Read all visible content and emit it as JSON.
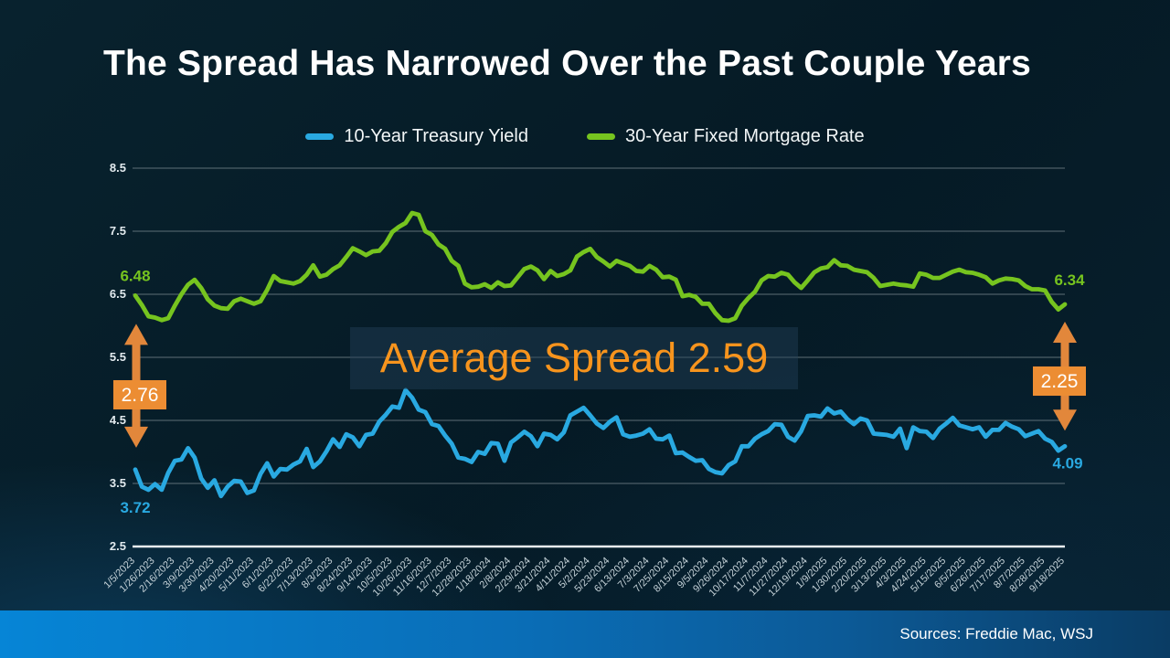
{
  "title": "The Spread Has Narrowed Over the Past Couple Years",
  "legend": [
    {
      "label": "10-Year Treasury Yield",
      "color": "#29a9e1"
    },
    {
      "label": "30-Year Fixed Mortgage Rate",
      "color": "#76c41f"
    }
  ],
  "annotations": {
    "mortgage_start": "6.48",
    "mortgage_end": "6.34",
    "treasury_start": "3.72",
    "treasury_end": "4.09",
    "left_spread": "2.76",
    "right_spread": "2.25",
    "average_spread": "Average Spread 2.59"
  },
  "footer": {
    "sources": "Sources: Freddie Mac, WSJ"
  },
  "colors": {
    "treasury_line": "#29a9e1",
    "mortgage_line": "#76c41f",
    "arrow_orange": "#e2873b",
    "box_orange": "#ec8d33",
    "avg_text_orange": "#f7941d",
    "gridline": "#8d9aa0",
    "axis_line": "#e9eff1",
    "y_tick_text": "#e2eaee",
    "x_tick_text": "#c5d2d8",
    "title_text": "#ffffff"
  },
  "chart_data": {
    "type": "line",
    "title": "The Spread Has Narrowed Over the Past Couple Years",
    "xlabel": "",
    "ylabel": "",
    "ylim": [
      2.5,
      8.5
    ],
    "yticks": [
      2.5,
      3.5,
      4.5,
      5.5,
      6.5,
      7.5,
      8.5
    ],
    "xtick_every": 3,
    "grid": true,
    "legend_position": "top",
    "x": [
      "1/5/2023",
      "1/12/2023",
      "1/19/2023",
      "1/26/2023",
      "2/2/2023",
      "2/9/2023",
      "2/16/2023",
      "2/23/2023",
      "3/2/2023",
      "3/9/2023",
      "3/16/2023",
      "3/23/2023",
      "3/30/2023",
      "4/6/2023",
      "4/13/2023",
      "4/20/2023",
      "4/27/2023",
      "5/4/2023",
      "5/11/2023",
      "5/18/2023",
      "5/25/2023",
      "6/1/2023",
      "6/8/2023",
      "6/15/2023",
      "6/22/2023",
      "6/29/2023",
      "7/6/2023",
      "7/13/2023",
      "7/20/2023",
      "7/27/2023",
      "8/3/2023",
      "8/10/2023",
      "8/17/2023",
      "8/24/2023",
      "8/31/2023",
      "9/7/2023",
      "9/14/2023",
      "9/21/2023",
      "9/28/2023",
      "10/5/2023",
      "10/12/2023",
      "10/19/2023",
      "10/26/2023",
      "11/2/2023",
      "11/9/2023",
      "11/16/2023",
      "11/22/2023",
      "11/30/2023",
      "12/7/2023",
      "12/14/2023",
      "12/21/2023",
      "12/28/2023",
      "1/4/2024",
      "1/11/2024",
      "1/18/2024",
      "1/25/2024",
      "2/1/2024",
      "2/8/2024",
      "2/15/2024",
      "2/22/2024",
      "2/29/2024",
      "3/7/2024",
      "3/14/2024",
      "3/21/2024",
      "3/28/2024",
      "4/4/2024",
      "4/11/2024",
      "4/18/2024",
      "4/25/2024",
      "5/2/2024",
      "5/9/2024",
      "5/16/2024",
      "5/23/2024",
      "5/30/2024",
      "6/6/2024",
      "6/13/2024",
      "6/20/2024",
      "6/27/2024",
      "7/3/2024",
      "7/11/2024",
      "7/18/2024",
      "7/25/2024",
      "8/1/2024",
      "8/8/2024",
      "8/15/2024",
      "8/22/2024",
      "8/29/2024",
      "9/5/2024",
      "9/12/2024",
      "9/19/2024",
      "9/26/2024",
      "10/3/2024",
      "10/10/2024",
      "10/17/2024",
      "10/24/2024",
      "10/31/2024",
      "11/7/2024",
      "11/14/2024",
      "11/21/2024",
      "11/27/2024",
      "12/5/2024",
      "12/12/2024",
      "12/19/2024",
      "12/26/2024",
      "1/2/2025",
      "1/9/2025",
      "1/16/2025",
      "1/23/2025",
      "1/30/2025",
      "2/6/2025",
      "2/13/2025",
      "2/20/2025",
      "2/27/2025",
      "3/6/2025",
      "3/13/2025",
      "3/20/2025",
      "3/27/2025",
      "4/3/2025",
      "4/10/2025",
      "4/17/2025",
      "4/24/2025",
      "5/1/2025",
      "5/8/2025",
      "5/15/2025",
      "5/22/2025",
      "5/29/2025",
      "6/5/2025",
      "6/12/2025",
      "6/18/2025",
      "6/26/2025",
      "7/3/2025",
      "7/10/2025",
      "7/17/2025",
      "7/24/2025",
      "7/31/2025",
      "8/7/2025",
      "8/14/2025",
      "8/21/2025",
      "8/28/2025",
      "9/4/2025",
      "9/11/2025",
      "9/18/2025"
    ],
    "series": [
      {
        "name": "10-Year Treasury Yield",
        "color": "#29a9e1",
        "values": [
          3.72,
          3.45,
          3.4,
          3.49,
          3.4,
          3.67,
          3.86,
          3.88,
          4.06,
          3.91,
          3.58,
          3.43,
          3.55,
          3.3,
          3.45,
          3.54,
          3.53,
          3.35,
          3.39,
          3.65,
          3.82,
          3.61,
          3.73,
          3.72,
          3.8,
          3.85,
          4.05,
          3.76,
          3.85,
          4.01,
          4.2,
          4.08,
          4.28,
          4.23,
          4.09,
          4.27,
          4.29,
          4.48,
          4.59,
          4.72,
          4.7,
          4.98,
          4.86,
          4.67,
          4.63,
          4.44,
          4.41,
          4.26,
          4.13,
          3.91,
          3.89,
          3.84,
          4.0,
          3.97,
          4.14,
          4.13,
          3.86,
          4.15,
          4.23,
          4.32,
          4.25,
          4.09,
          4.29,
          4.27,
          4.2,
          4.31,
          4.58,
          4.64,
          4.7,
          4.58,
          4.45,
          4.38,
          4.48,
          4.55,
          4.28,
          4.24,
          4.26,
          4.29,
          4.36,
          4.21,
          4.2,
          4.26,
          3.98,
          3.99,
          3.92,
          3.86,
          3.87,
          3.73,
          3.68,
          3.66,
          3.79,
          3.85,
          4.09,
          4.09,
          4.21,
          4.28,
          4.33,
          4.44,
          4.43,
          4.24,
          4.18,
          4.33,
          4.57,
          4.58,
          4.56,
          4.69,
          4.61,
          4.64,
          4.52,
          4.44,
          4.53,
          4.5,
          4.29,
          4.28,
          4.27,
          4.24,
          4.37,
          4.06,
          4.39,
          4.33,
          4.32,
          4.22,
          4.37,
          4.45,
          4.54,
          4.42,
          4.39,
          4.36,
          4.39,
          4.24,
          4.35,
          4.35,
          4.46,
          4.4,
          4.36,
          4.25,
          4.29,
          4.33,
          4.21,
          4.16,
          4.02,
          4.09
        ]
      },
      {
        "name": "30-Year Fixed Mortgage Rate",
        "color": "#76c41f",
        "values": [
          6.48,
          6.33,
          6.15,
          6.13,
          6.09,
          6.12,
          6.32,
          6.5,
          6.65,
          6.73,
          6.6,
          6.42,
          6.32,
          6.28,
          6.27,
          6.39,
          6.43,
          6.39,
          6.35,
          6.39,
          6.57,
          6.79,
          6.71,
          6.69,
          6.67,
          6.71,
          6.81,
          6.96,
          6.78,
          6.81,
          6.9,
          6.96,
          7.09,
          7.23,
          7.18,
          7.12,
          7.18,
          7.19,
          7.31,
          7.49,
          7.57,
          7.63,
          7.79,
          7.76,
          7.5,
          7.44,
          7.29,
          7.22,
          7.03,
          6.95,
          6.67,
          6.61,
          6.62,
          6.66,
          6.6,
          6.69,
          6.63,
          6.64,
          6.77,
          6.9,
          6.94,
          6.88,
          6.74,
          6.87,
          6.79,
          6.82,
          6.88,
          7.1,
          7.17,
          7.22,
          7.09,
          7.02,
          6.94,
          7.03,
          6.99,
          6.95,
          6.87,
          6.86,
          6.95,
          6.89,
          6.77,
          6.78,
          6.73,
          6.47,
          6.49,
          6.46,
          6.35,
          6.35,
          6.2,
          6.09,
          6.08,
          6.12,
          6.32,
          6.44,
          6.54,
          6.72,
          6.79,
          6.78,
          6.84,
          6.81,
          6.69,
          6.6,
          6.72,
          6.85,
          6.91,
          6.93,
          7.04,
          6.96,
          6.95,
          6.89,
          6.87,
          6.85,
          6.76,
          6.63,
          6.65,
          6.67,
          6.65,
          6.64,
          6.62,
          6.83,
          6.81,
          6.76,
          6.76,
          6.81,
          6.86,
          6.89,
          6.85,
          6.84,
          6.81,
          6.77,
          6.67,
          6.72,
          6.75,
          6.74,
          6.72,
          6.63,
          6.58,
          6.58,
          6.56,
          6.38,
          6.26,
          6.34
        ]
      }
    ]
  }
}
